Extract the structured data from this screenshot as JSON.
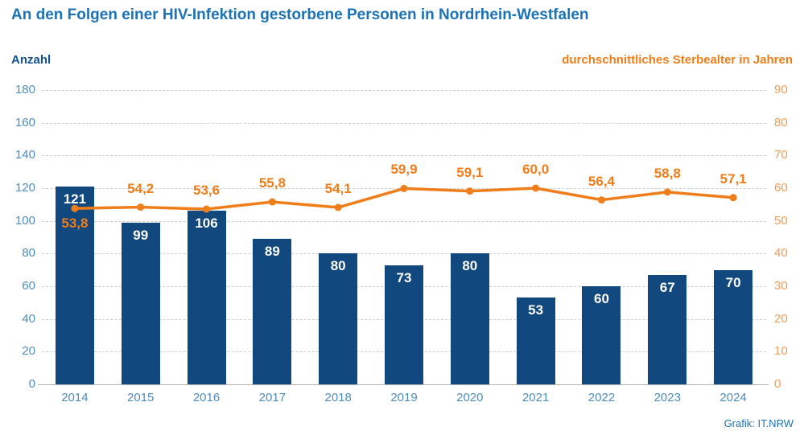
{
  "title": "An den Folgen einer HIV-Infektion gestorbene Personen in Nordrhein-Westfalen",
  "left_axis_header": "Anzahl",
  "right_axis_header": "durchschnittliches Sterbealter in Jahren",
  "credit": "Grafik: IT.NRW",
  "colors": {
    "title_blue": "#1b73b6",
    "header_blue": "#134f8c",
    "bar_navy": "#11487e",
    "line_orange": "#ef7d1a",
    "left_tick_blue": "#4e8dc0",
    "right_tick_orange": "#f19d55",
    "gridline_gray": "#cfcfcf",
    "bar_label_white": "#ffffff"
  },
  "chart_data": {
    "type": "bar",
    "subtype": "bar-and-line-combo",
    "categories": [
      "2014",
      "2015",
      "2016",
      "2017",
      "2018",
      "2019",
      "2020",
      "2021",
      "2022",
      "2023",
      "2024"
    ],
    "series": [
      {
        "name": "Anzahl",
        "type": "bar",
        "axis": "left",
        "values": [
          121,
          99,
          106,
          89,
          80,
          73,
          80,
          53,
          60,
          67,
          70
        ]
      },
      {
        "name": "durchschnittliches Sterbealter in Jahren",
        "type": "line",
        "axis": "right",
        "values": [
          53.8,
          54.2,
          53.6,
          55.8,
          54.1,
          59.9,
          59.1,
          60.0,
          56.4,
          58.8,
          57.1
        ],
        "display_labels": [
          "53,8",
          "54,2",
          "53,6",
          "55,8",
          "54,1",
          "59,9",
          "59,1",
          "60,0",
          "56,4",
          "58,8",
          "57,1"
        ],
        "first_label_below_point": true
      }
    ],
    "left_axis": {
      "min": 0,
      "max": 180,
      "step": 20,
      "tick_labels": [
        "0",
        "20",
        "40",
        "60",
        "80",
        "100",
        "120",
        "140",
        "160",
        "180"
      ]
    },
    "right_axis": {
      "min": 0,
      "max": 90,
      "step": 10,
      "tick_labels": [
        "0",
        "10",
        "20",
        "30",
        "40",
        "50",
        "60",
        "70",
        "80",
        "90"
      ]
    },
    "grid": "horizontal-dashed",
    "legend_position": "none",
    "xlabel": "",
    "ylabel_left": "Anzahl",
    "ylabel_right": "durchschnittliches Sterbealter in Jahren"
  }
}
